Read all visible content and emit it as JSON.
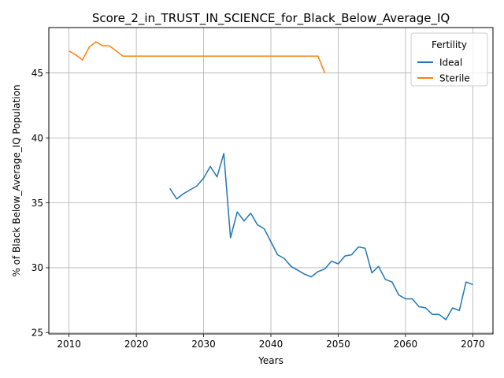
{
  "chart_data": {
    "type": "line",
    "title": "Score_2_in_TRUST_IN_SCIENCE_for_Black_Below_Average_IQ",
    "xlabel": "Years",
    "ylabel": "% of Black Below_Average_IQ Population",
    "xlim": [
      2007,
      2073
    ],
    "ylim": [
      24.9,
      48.5
    ],
    "xticks": [
      2010,
      2020,
      2030,
      2040,
      2050,
      2060,
      2070
    ],
    "yticks": [
      25,
      30,
      35,
      40,
      45
    ],
    "grid": true,
    "legend": {
      "title": "Fertility",
      "position": "top-right"
    },
    "series": [
      {
        "name": "Ideal",
        "color": "#1f77b4",
        "x": [
          2025,
          2026,
          2027,
          2028,
          2029,
          2030,
          2031,
          2032,
          2033,
          2034,
          2035,
          2036,
          2037,
          2038,
          2039,
          2040,
          2041,
          2042,
          2043,
          2044,
          2045,
          2046,
          2047,
          2048,
          2049,
          2050,
          2051,
          2052,
          2053,
          2054,
          2055,
          2056,
          2057,
          2058,
          2059,
          2060,
          2061,
          2062,
          2063,
          2064,
          2065,
          2066,
          2067,
          2068,
          2069,
          2070
        ],
        "y": [
          36.1,
          35.3,
          35.7,
          36.0,
          36.3,
          36.9,
          37.8,
          37.0,
          38.8,
          32.3,
          34.3,
          33.6,
          34.2,
          33.3,
          33.0,
          32.0,
          31.0,
          30.7,
          30.1,
          29.8,
          29.5,
          29.3,
          29.7,
          29.9,
          30.5,
          30.3,
          30.9,
          31.0,
          31.6,
          31.5,
          29.6,
          30.1,
          29.1,
          28.9,
          27.9,
          27.6,
          27.6,
          27.0,
          26.9,
          26.4,
          26.4,
          26.0,
          26.9,
          26.7,
          28.9,
          28.7
        ]
      },
      {
        "name": "Sterile",
        "color": "#ff7f0e",
        "x": [
          2010,
          2011,
          2012,
          2013,
          2014,
          2015,
          2016,
          2017,
          2018,
          2019,
          2020,
          2021,
          2022,
          2023,
          2024,
          2025,
          2026,
          2027,
          2028,
          2029,
          2030,
          2031,
          2032,
          2033,
          2034,
          2035,
          2036,
          2037,
          2038,
          2039,
          2040,
          2041,
          2042,
          2043,
          2044,
          2045,
          2046,
          2047,
          2048
        ],
        "y": [
          46.7,
          46.4,
          46.0,
          47.0,
          47.4,
          47.1,
          47.1,
          46.7,
          46.3,
          46.3,
          46.3,
          46.3,
          46.3,
          46.3,
          46.3,
          46.3,
          46.3,
          46.3,
          46.3,
          46.3,
          46.3,
          46.3,
          46.3,
          46.3,
          46.3,
          46.3,
          46.3,
          46.3,
          46.3,
          46.3,
          46.3,
          46.3,
          46.3,
          46.3,
          46.3,
          46.3,
          46.3,
          46.3,
          45.0
        ]
      }
    ]
  }
}
